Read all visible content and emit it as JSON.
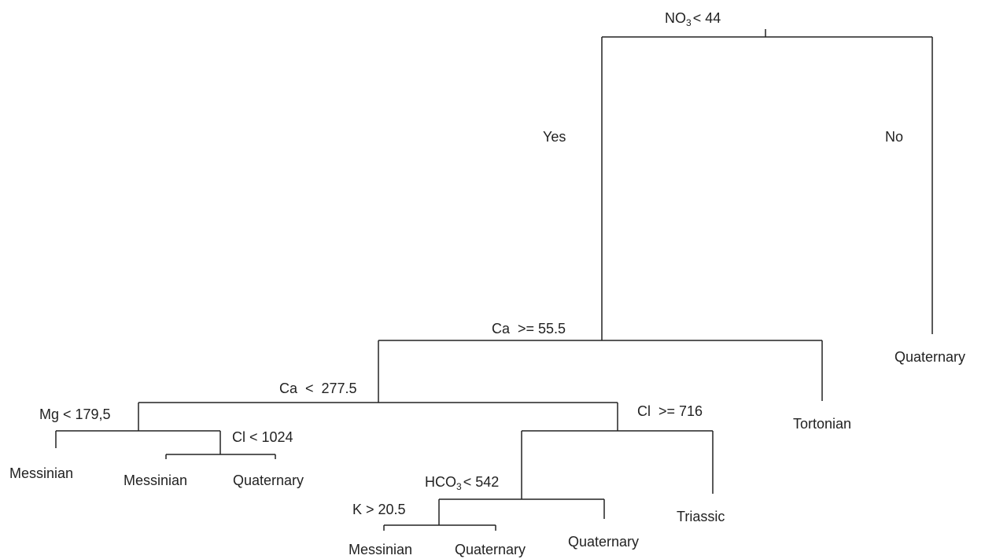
{
  "splits": [
    {
      "text": "NO",
      "subscript": "3",
      "rest": "< 44"
    },
    {
      "text": "Ca  >= 55.5"
    },
    {
      "text": "Ca  <  277.5"
    },
    {
      "text": "Mg < 179,5"
    },
    {
      "text": "Cl < 1024"
    },
    {
      "text": "Cl  >= 716"
    },
    {
      "text": "HCO",
      "subscript": "3",
      "rest": "< 542"
    },
    {
      "text": "K > 20.5"
    }
  ],
  "branch_labels": {
    "yes": "Yes",
    "no": "No"
  },
  "leaves": [
    "Quaternary",
    "Tortonian",
    "Messinian",
    "Messinian",
    "Quaternary",
    "Triassic",
    "Quaternary",
    "Messinian",
    "Quaternary"
  ]
}
